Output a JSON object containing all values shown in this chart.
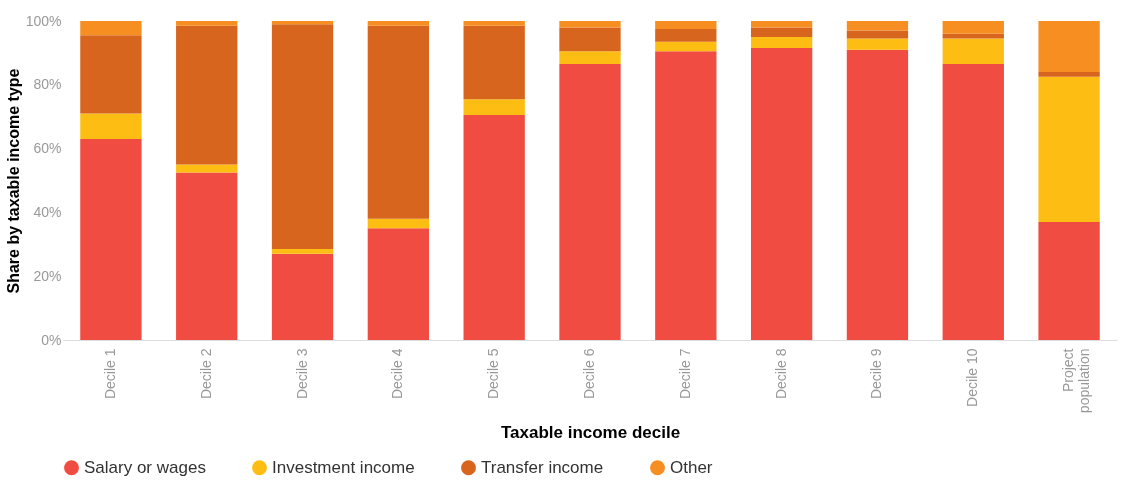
{
  "chart_data": {
    "type": "bar",
    "stacked": true,
    "xlabel": "Taxable income decile",
    "ylabel": "Share by taxable income type",
    "categories": [
      "Decile 1",
      "Decile 2",
      "Decile 3",
      "Decile 4",
      "Decile 5",
      "Decile 6",
      "Decile 7",
      "Decile 8",
      "Decile 9",
      "Decile 10",
      "Project population"
    ],
    "series": [
      {
        "name": "Salary or wages",
        "color": "#f04c41",
        "values": [
          63,
          52.5,
          27,
          35,
          70.5,
          86.5,
          90.5,
          91.5,
          91,
          86.5,
          37
        ]
      },
      {
        "name": "Investment income",
        "color": "#fdbd12",
        "values": [
          8,
          2.5,
          1.5,
          3,
          5,
          4,
          3,
          3.5,
          3.5,
          8,
          45.5
        ]
      },
      {
        "name": "Transfer income",
        "color": "#d7651e",
        "values": [
          24.5,
          43.5,
          70.5,
          60.5,
          23,
          7.5,
          4,
          3,
          2.5,
          1.5,
          1.5
        ]
      },
      {
        "name": "Other",
        "color": "#f68e22",
        "values": [
          4.5,
          1.5,
          1,
          1.5,
          1.5,
          2,
          2.5,
          2,
          3,
          4,
          16
        ]
      }
    ],
    "ylim": [
      0,
      100
    ],
    "yticks": [
      {
        "value": 0,
        "label": "0%"
      },
      {
        "value": 20,
        "label": "20%"
      },
      {
        "value": 40,
        "label": "40%"
      },
      {
        "value": 60,
        "label": "60%"
      },
      {
        "value": 80,
        "label": "80%"
      },
      {
        "value": 100,
        "label": "100%"
      }
    ],
    "grid": false,
    "legend": "bottom"
  }
}
